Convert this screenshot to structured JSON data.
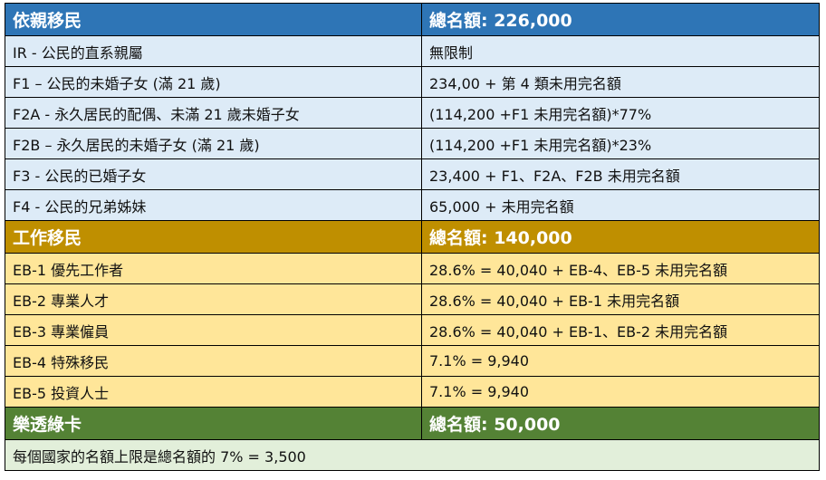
{
  "sections": [
    {
      "title": "依親移民",
      "total": "總名額: 226,000",
      "color": "#2E75B6",
      "rows": [
        [
          "IR - 公民的直系親屬",
          "無限制"
        ],
        [
          "F1 – 公民的未婚子女 (滿 21 歲)",
          "234,00 + 第 4 類未用完名額"
        ],
        [
          "F2A - 永久居民的配偶、未滿 21 歲未婚子女",
          "(114,200 +F1 未用完名額)*77%"
        ],
        [
          "F2B – 永久居民的未婚子女 (滿 21 歲)",
          "(114,200 +F1 未用完名額)*23%"
        ],
        [
          "F3 - 公民的已婚子女",
          "23,400 + F1、F2A、F2B 未用完名額"
        ],
        [
          "F4 - 公民的兄弟姊妹",
          "65,000 + 未用完名額"
        ]
      ]
    },
    {
      "title": "工作移民",
      "total": "總名額: 140,000",
      "color": "#BF8F00",
      "rows": [
        [
          "EB-1 優先工作者",
          "28.6% = 40,040 + EB-4、EB-5 未用完名額"
        ],
        [
          "EB-2 專業人才",
          "28.6% = 40,040 + EB-1 未用完名額"
        ],
        [
          "EB-3 專業僱員",
          "28.6% = 40,040 + EB-1、EB-2 未用完名額"
        ],
        [
          "EB-4 特殊移民",
          "7.1% = 9,940"
        ],
        [
          "EB-5 投資人士",
          "7.1% = 9,940"
        ]
      ]
    },
    {
      "title": "樂透綠卡",
      "total": "總名額: 50,000",
      "color": "#548235",
      "note": "每個國家的名額上限是總名額的 7% = 3,500"
    }
  ]
}
